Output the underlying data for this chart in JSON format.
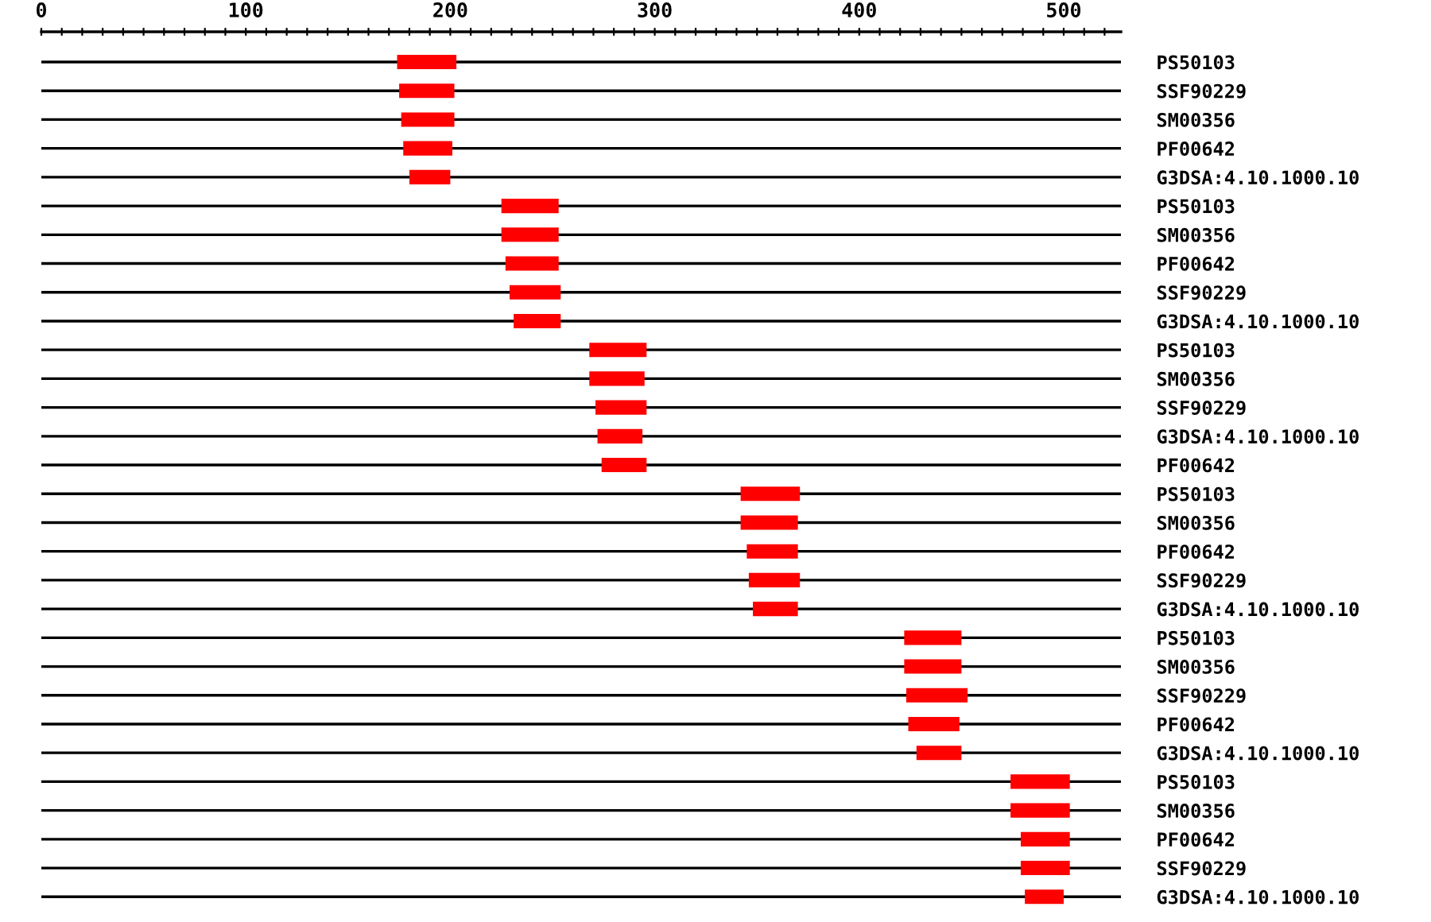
{
  "chart_data": {
    "type": "bar",
    "orientation": "horizontal",
    "categories": [
      "PS50103",
      "SSF90229",
      "SM00356",
      "PF00642",
      "G3DSA:4.10.1000.10",
      "PS50103",
      "SM00356",
      "PF00642",
      "SSF90229",
      "G3DSA:4.10.1000.10",
      "PS50103",
      "SM00356",
      "SSF90229",
      "G3DSA:4.10.1000.10",
      "PF00642",
      "PS50103",
      "SM00356",
      "PF00642",
      "SSF90229",
      "G3DSA:4.10.1000.10",
      "PS50103",
      "SM00356",
      "SSF90229",
      "PF00642",
      "G3DSA:4.10.1000.10",
      "PS50103",
      "SM00356",
      "PF00642",
      "SSF90229",
      "G3DSA:4.10.1000.10"
    ],
    "base": [
      174,
      175,
      176,
      177,
      180,
      225,
      225,
      227,
      229,
      231,
      268,
      268,
      271,
      272,
      274,
      342,
      342,
      345,
      346,
      348,
      422,
      422,
      423,
      424,
      428,
      474,
      474,
      479,
      479,
      481
    ],
    "values": [
      29,
      27,
      26,
      24,
      20,
      28,
      28,
      26,
      25,
      23,
      28,
      27,
      25,
      22,
      22,
      29,
      28,
      25,
      25,
      22,
      28,
      28,
      30,
      25,
      22,
      29,
      29,
      24,
      24,
      19
    ],
    "color": "#ff0000",
    "xlim": [
      0,
      528
    ],
    "xticks": [
      0,
      {
        "value": 10,
        "label": null
      },
      {
        "value": 20,
        "label": null
      },
      {
        "value": 30,
        "label": null
      },
      {
        "value": 40,
        "label": null
      },
      {
        "value": 50,
        "label": null
      },
      {
        "value": 60,
        "label": null
      },
      {
        "value": 70,
        "label": null
      },
      {
        "value": 80,
        "label": null
      },
      {
        "value": 90,
        "label": null
      },
      100,
      {
        "value": 110,
        "label": null
      },
      {
        "value": 120,
        "label": null
      },
      {
        "value": 130,
        "label": null
      },
      {
        "value": 140,
        "label": null
      },
      {
        "value": 150,
        "label": null
      },
      {
        "value": 160,
        "label": null
      },
      {
        "value": 170,
        "label": null
      },
      {
        "value": 180,
        "label": null
      },
      {
        "value": 190,
        "label": null
      },
      200,
      {
        "value": 210,
        "label": null
      },
      {
        "value": 220,
        "label": null
      },
      {
        "value": 230,
        "label": null
      },
      {
        "value": 240,
        "label": null
      },
      {
        "value": 250,
        "label": null
      },
      {
        "value": 260,
        "label": null
      },
      {
        "value": 270,
        "label": null
      },
      {
        "value": 280,
        "label": null
      },
      {
        "value": 290,
        "label": null
      },
      300,
      {
        "value": 310,
        "label": null
      },
      {
        "value": 320,
        "label": null
      },
      {
        "value": 330,
        "label": null
      },
      {
        "value": 340,
        "label": null
      },
      {
        "value": 350,
        "label": null
      },
      {
        "value": 360,
        "label": null
      },
      {
        "value": 370,
        "label": null
      },
      {
        "value": 380,
        "label": null
      },
      {
        "value": 390,
        "label": null
      },
      400,
      {
        "value": 410,
        "label": null
      },
      {
        "value": 420,
        "label": null
      },
      {
        "value": 430,
        "label": null
      },
      {
        "value": 440,
        "label": null
      },
      {
        "value": 450,
        "label": null
      },
      {
        "value": 460,
        "label": null
      },
      {
        "value": 470,
        "label": null
      },
      {
        "value": 480,
        "label": null
      },
      {
        "value": 490,
        "label": null
      },
      500,
      {
        "value": 510,
        "label": null
      },
      {
        "value": 520,
        "label": null
      }
    ],
    "grid": "y"
  }
}
